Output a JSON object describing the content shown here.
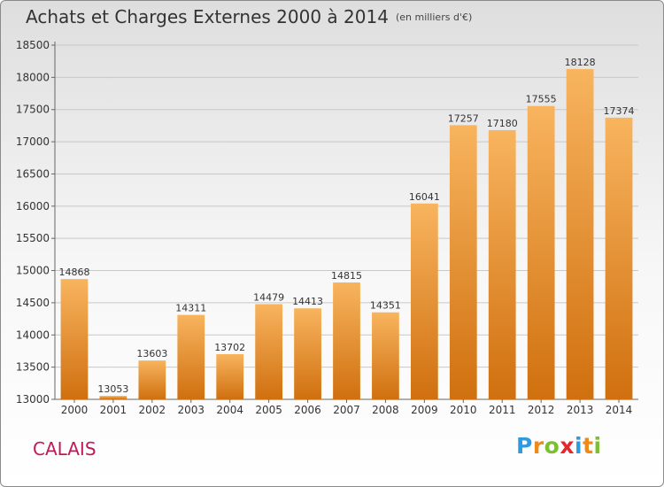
{
  "title": "Achats et Charges Externes 2000 à 2014",
  "unit_note": "(en milliers d'€)",
  "city": "CALAIS",
  "logo": {
    "letters": [
      "P",
      "r",
      "o",
      "x",
      "i",
      "t",
      "i"
    ],
    "colors": [
      "#2e9be0",
      "#ef8a17",
      "#7cbf2f",
      "#e5262d",
      "#2e9be0",
      "#ef8a17",
      "#7cbf2f"
    ]
  },
  "colors": {
    "bar_light": "#f8b45e",
    "bar_dark": "#d0700f",
    "grid": "#c8c8c8"
  },
  "chart_data": {
    "type": "bar",
    "categories": [
      "2000",
      "2001",
      "2002",
      "2003",
      "2004",
      "2005",
      "2006",
      "2007",
      "2008",
      "2009",
      "2010",
      "2011",
      "2012",
      "2013",
      "2014"
    ],
    "values": [
      14868,
      13053,
      13603,
      14311,
      13702,
      14479,
      14413,
      14815,
      14351,
      16041,
      17257,
      17180,
      17555,
      18128,
      17374
    ],
    "ylim": [
      13000,
      18500
    ],
    "yticks": [
      13000,
      13500,
      14000,
      14500,
      15000,
      15500,
      16000,
      16500,
      17000,
      17500,
      18000,
      18500
    ],
    "grid": true
  }
}
